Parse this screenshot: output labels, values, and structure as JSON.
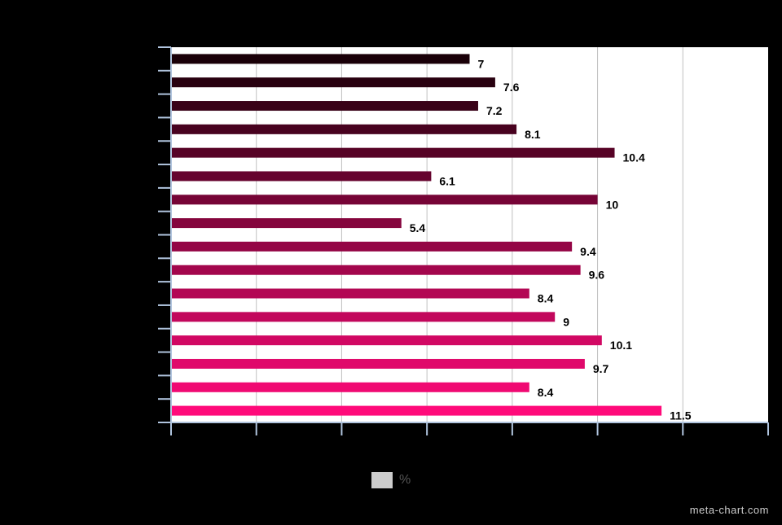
{
  "chart_data": {
    "type": "bar",
    "orientation": "horizontal",
    "categories": [
      "",
      "",
      "",
      "",
      "",
      "",
      "",
      "",
      "",
      "",
      "",
      "",
      "",
      "",
      "",
      ""
    ],
    "series": [
      {
        "name": "%",
        "values": [
          7,
          7.6,
          7.2,
          8.1,
          10.4,
          6.1,
          10,
          5.4,
          9.4,
          9.6,
          8.4,
          9,
          10.1,
          9.7,
          8.4,
          11.5
        ]
      }
    ],
    "title": "",
    "xlabel": "",
    "ylabel": "",
    "xlim": [
      0,
      14
    ],
    "grid": true,
    "legend_position": "bottom-center",
    "bar_color_start": "#1a0008",
    "bar_color_end": "#ff0a7a",
    "plot_background": "#ffffff",
    "grid_color": "#c0c0c0",
    "legend_swatch_color": "#cccccc"
  },
  "legend": {
    "label": "%"
  },
  "watermark": "meta-chart.com"
}
